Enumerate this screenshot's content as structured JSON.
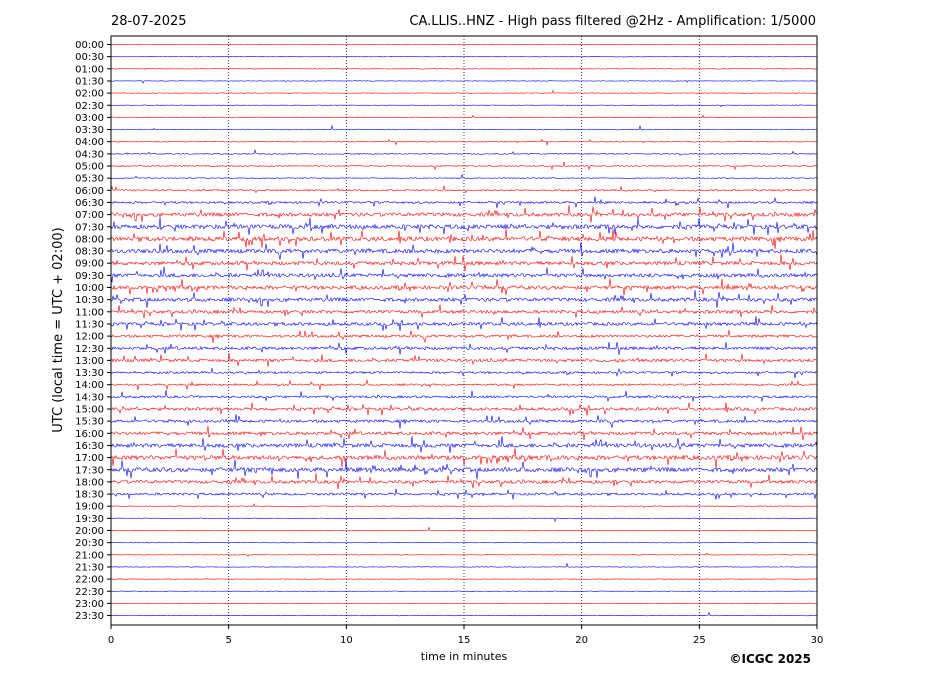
{
  "header": {
    "date": "28-07-2025",
    "title": "CA.LLIS..HNZ - High pass filtered @2Hz - Amplification: 1/5000"
  },
  "footer": {
    "copyright": "©ICGC 2025"
  },
  "colors": {
    "even_trace": "#ff0000",
    "odd_trace": "#0000ff",
    "grid": "#000080"
  },
  "chart_data": {
    "type": "line",
    "title": "CA.LLIS..HNZ - High pass filtered @2Hz - Amplification: 1/5000",
    "xlabel": "time in minutes",
    "ylabel": "UTC (local time = UTC + 02:00)",
    "xlim": [
      0,
      30
    ],
    "x_ticks": [
      0,
      5,
      10,
      15,
      20,
      25,
      30
    ],
    "vertical_grid": [
      5,
      10,
      15,
      20,
      25
    ],
    "rows": [
      "00:00",
      "00:30",
      "01:00",
      "01:30",
      "02:00",
      "02:30",
      "03:00",
      "03:30",
      "04:00",
      "04:30",
      "05:00",
      "05:30",
      "06:00",
      "06:30",
      "07:00",
      "07:30",
      "08:00",
      "08:30",
      "09:00",
      "09:30",
      "10:00",
      "10:30",
      "11:00",
      "11:30",
      "12:00",
      "12:30",
      "13:00",
      "13:30",
      "14:00",
      "14:30",
      "15:00",
      "15:30",
      "16:00",
      "16:30",
      "17:00",
      "17:30",
      "18:00",
      "18:30",
      "19:00",
      "19:30",
      "20:00",
      "20:30",
      "21:00",
      "21:30",
      "22:00",
      "22:30",
      "23:00",
      "23:30"
    ],
    "row_activity": [
      0.02,
      0.02,
      0.02,
      0.02,
      0.02,
      0.02,
      0.05,
      0.05,
      0.08,
      0.12,
      0.15,
      0.1,
      0.25,
      0.35,
      0.7,
      0.85,
      0.85,
      0.8,
      0.7,
      0.7,
      0.7,
      0.7,
      0.6,
      0.6,
      0.45,
      0.55,
      0.55,
      0.35,
      0.3,
      0.4,
      0.55,
      0.5,
      0.6,
      0.75,
      0.85,
      0.85,
      0.6,
      0.4,
      0.05,
      0.05,
      0.02,
      0.02,
      0.02,
      0.02,
      0.02,
      0.02,
      0.02,
      0.02
    ],
    "grid": true
  }
}
